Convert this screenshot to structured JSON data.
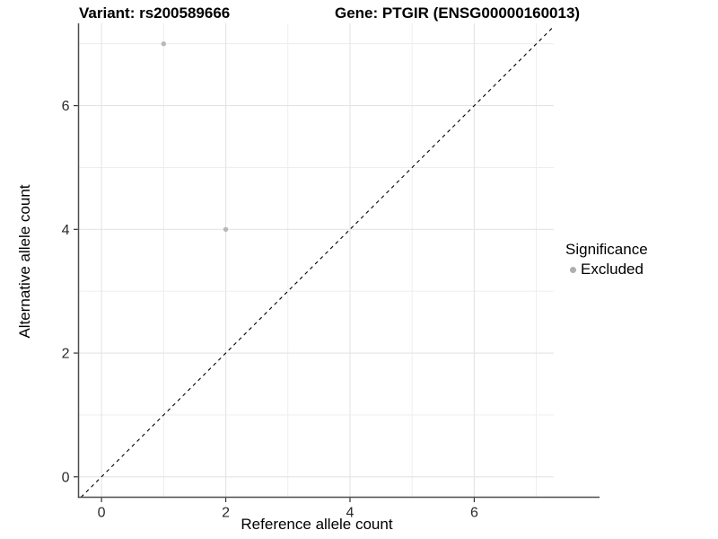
{
  "header": {
    "variant_title": "Variant: rs200589666",
    "gene_title": "Gene: PTGIR (ENSG00000160013)"
  },
  "chart_data": {
    "type": "scatter",
    "xlabel": "Reference allele count",
    "ylabel": "Alternative allele count",
    "xticks": [
      0,
      2,
      4,
      6
    ],
    "yticks": [
      0,
      2,
      4,
      6
    ],
    "xminor": [
      1,
      3,
      5,
      7
    ],
    "yminor": [
      1,
      3,
      5,
      7
    ],
    "xlim": [
      -0.37,
      7.28
    ],
    "ylim": [
      -0.33,
      7.33
    ],
    "grid": "on",
    "points": [
      {
        "x": 1,
        "y": 7,
        "significance": "Excluded"
      },
      {
        "x": 2,
        "y": 4,
        "significance": "Excluded"
      }
    ],
    "identity_line": {
      "slope": 1,
      "intercept": 0,
      "style": "dashed"
    },
    "legend_position": "right"
  },
  "legend": {
    "title": "Significance",
    "items": [
      {
        "label": "Excluded",
        "color": "#AFAFAF"
      }
    ]
  },
  "colors": {
    "point": "#B8B8B8",
    "identity_line": "#000000",
    "axis_line": "#4D4D4D",
    "tick_mark": "#333333",
    "tick_label": "#2B2B2B",
    "grid_major": "#E4E4E4",
    "grid_minor": "#ECECEC"
  }
}
